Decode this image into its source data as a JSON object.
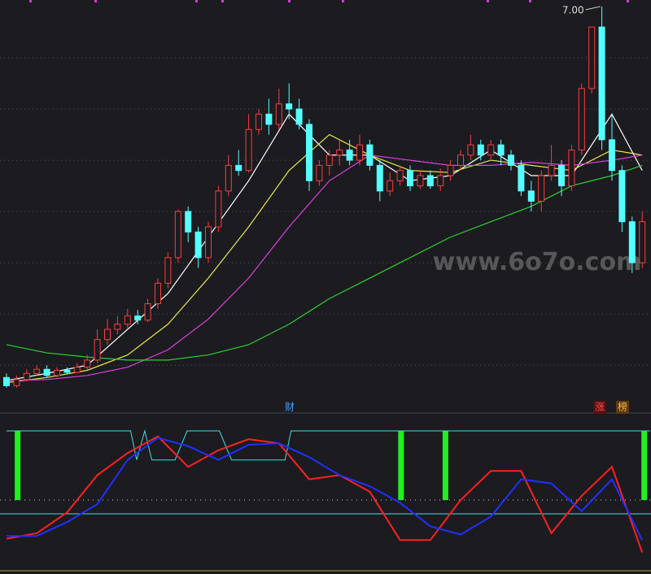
{
  "chart_data": [
    {
      "type": "candlestick",
      "up_color": "#ff3c3c",
      "down_color": "#54ffff",
      "ylim": [
        3.2,
        7.0
      ],
      "gridlines": [
        6.5,
        6.0,
        5.5,
        5.0,
        4.5,
        4.0,
        3.5
      ],
      "grid": true,
      "peak_label": {
        "value": 7.0,
        "label": "7.00"
      },
      "watermark": "www.6o7o.com",
      "markers": [
        "财",
        "涨",
        "榜"
      ],
      "candles": [
        [
          3.38,
          3.3,
          3.42,
          3.28
        ],
        [
          3.3,
          3.36,
          3.4,
          3.28
        ],
        [
          3.36,
          3.42,
          3.46,
          3.34
        ],
        [
          3.42,
          3.46,
          3.5,
          3.4
        ],
        [
          3.46,
          3.4,
          3.5,
          3.38
        ],
        [
          3.4,
          3.45,
          3.48,
          3.38
        ],
        [
          3.45,
          3.43,
          3.48,
          3.41
        ],
        [
          3.43,
          3.48,
          3.52,
          3.42
        ],
        [
          3.48,
          3.55,
          3.6,
          3.46
        ],
        [
          3.55,
          3.75,
          3.85,
          3.52
        ],
        [
          3.75,
          3.85,
          3.95,
          3.7
        ],
        [
          3.85,
          3.9,
          3.98,
          3.8
        ],
        [
          3.9,
          3.98,
          4.05,
          3.86
        ],
        [
          3.98,
          3.94,
          4.04,
          3.9
        ],
        [
          3.94,
          4.1,
          4.15,
          3.92
        ],
        [
          4.1,
          4.3,
          4.35,
          4.05
        ],
        [
          4.3,
          4.55,
          4.6,
          4.25
        ],
        [
          4.55,
          5.0,
          5.02,
          4.5
        ],
        [
          5.0,
          4.8,
          5.05,
          4.7
        ],
        [
          4.8,
          4.55,
          4.85,
          4.45
        ],
        [
          4.55,
          4.85,
          4.9,
          4.5
        ],
        [
          4.85,
          5.2,
          5.25,
          4.8
        ],
        [
          5.2,
          5.45,
          5.55,
          5.15
        ],
        [
          5.45,
          5.4,
          5.6,
          5.35
        ],
        [
          5.4,
          5.8,
          5.95,
          5.38
        ],
        [
          5.8,
          5.95,
          6.0,
          5.75
        ],
        [
          5.95,
          5.85,
          6.1,
          5.75
        ],
        [
          5.85,
          6.05,
          6.2,
          5.8
        ],
        [
          6.05,
          6.0,
          6.25,
          5.9
        ],
        [
          6.0,
          5.85,
          6.1,
          5.8
        ],
        [
          5.85,
          5.3,
          5.9,
          5.2
        ],
        [
          5.3,
          5.45,
          5.5,
          5.25
        ],
        [
          5.45,
          5.55,
          5.6,
          5.35
        ],
        [
          5.55,
          5.6,
          5.7,
          5.45
        ],
        [
          5.6,
          5.5,
          5.7,
          5.45
        ],
        [
          5.5,
          5.65,
          5.75,
          5.45
        ],
        [
          5.65,
          5.45,
          5.7,
          5.4
        ],
        [
          5.45,
          5.2,
          5.5,
          5.1
        ],
        [
          5.2,
          5.3,
          5.38,
          5.15
        ],
        [
          5.3,
          5.4,
          5.45,
          5.25
        ],
        [
          5.4,
          5.25,
          5.45,
          5.2
        ],
        [
          5.25,
          5.35,
          5.4,
          5.22
        ],
        [
          5.35,
          5.25,
          5.4,
          5.22
        ],
        [
          5.25,
          5.35,
          5.42,
          5.2
        ],
        [
          5.35,
          5.45,
          5.5,
          5.3
        ],
        [
          5.45,
          5.55,
          5.6,
          5.4
        ],
        [
          5.55,
          5.65,
          5.75,
          5.5
        ],
        [
          5.65,
          5.55,
          5.7,
          5.5
        ],
        [
          5.55,
          5.65,
          5.7,
          5.5
        ],
        [
          5.65,
          5.55,
          5.7,
          5.45
        ],
        [
          5.55,
          5.45,
          5.6,
          5.4
        ],
        [
          5.45,
          5.2,
          5.5,
          5.15
        ],
        [
          5.2,
          5.1,
          5.3,
          5.0
        ],
        [
          5.1,
          5.35,
          5.4,
          5.0
        ],
        [
          5.35,
          5.45,
          5.65,
          5.3
        ],
        [
          5.45,
          5.25,
          5.5,
          5.15
        ],
        [
          5.25,
          5.6,
          5.65,
          5.2
        ],
        [
          5.6,
          6.2,
          6.25,
          5.55
        ],
        [
          6.2,
          6.8,
          6.8,
          6.15
        ],
        [
          6.8,
          5.7,
          7.0,
          5.6
        ],
        [
          5.7,
          5.4,
          5.95,
          5.3
        ],
        [
          5.4,
          4.9,
          5.45,
          4.8
        ],
        [
          4.9,
          4.5,
          4.95,
          4.4
        ],
        [
          4.5,
          4.9,
          5.0,
          4.45
        ]
      ],
      "ma_x": [
        0,
        4,
        8,
        12,
        16,
        20,
        24,
        28,
        32,
        36,
        40,
        44,
        48,
        52,
        56,
        60,
        63
      ],
      "series": [
        {
          "color": "#ffffff",
          "values": [
            3.35,
            3.42,
            3.5,
            3.85,
            4.2,
            4.75,
            5.3,
            5.95,
            5.55,
            5.55,
            5.3,
            5.35,
            5.6,
            5.35,
            5.35,
            5.95,
            5.4
          ]
        },
        {
          "color": "#e8e84a",
          "values": [
            3.33,
            3.38,
            3.45,
            3.6,
            3.9,
            4.35,
            4.85,
            5.4,
            5.75,
            5.55,
            5.4,
            5.38,
            5.5,
            5.45,
            5.4,
            5.6,
            5.55
          ]
        },
        {
          "color": "#e040e0",
          "values": [
            3.35,
            3.36,
            3.4,
            3.48,
            3.65,
            3.95,
            4.35,
            4.85,
            5.3,
            5.55,
            5.5,
            5.45,
            5.45,
            5.48,
            5.45,
            5.5,
            5.55
          ]
        },
        {
          "color": "#30d030",
          "values": [
            3.7,
            3.62,
            3.58,
            3.55,
            3.55,
            3.6,
            3.7,
            3.9,
            4.15,
            4.35,
            4.55,
            4.75,
            4.9,
            5.05,
            5.25,
            5.35,
            5.45
          ]
        }
      ]
    },
    {
      "type": "oscillator",
      "ylim": [
        0,
        100
      ],
      "step": {
        "color": "#40e0e0",
        "x": [
          0,
          12.3,
          12.9,
          13.7,
          14.4,
          16.7,
          17.9,
          21.1,
          22.3,
          27.6,
          28.2,
          63.8
        ],
        "values": [
          100,
          100,
          79,
          100,
          79,
          79,
          100,
          100,
          79,
          79,
          100,
          100
        ]
      },
      "x": [
        0,
        3,
        6,
        9,
        12,
        15,
        18,
        21,
        24,
        27,
        30,
        33,
        36,
        39,
        42,
        45,
        48,
        51,
        54,
        57,
        60,
        63
      ],
      "series": [
        {
          "color": "#ff2020",
          "values": [
            22,
            26,
            41,
            68,
            84,
            96,
            74,
            86,
            94,
            91,
            65,
            68,
            56,
            21,
            21,
            50,
            71,
            71,
            26,
            53,
            74,
            12
          ]
        },
        {
          "color": "#2030ff",
          "values": [
            24,
            24,
            34,
            47,
            79,
            95,
            89,
            79,
            90,
            91,
            81,
            68,
            60,
            48,
            31,
            25,
            38,
            65,
            62,
            42,
            65,
            21
          ]
        }
      ],
      "reference_lines": [
        {
          "value": 50,
          "color": "#d0d0d0",
          "dotted": true
        },
        {
          "value": 40,
          "color": "#40e0e0",
          "dotted": false
        }
      ],
      "signal_bars": {
        "color": "#20f020",
        "x": [
          1.1,
          39.1,
          43.5,
          63.2
        ],
        "low": [
          50,
          50,
          50,
          50
        ],
        "high": [
          100,
          100,
          100,
          100
        ]
      }
    }
  ]
}
